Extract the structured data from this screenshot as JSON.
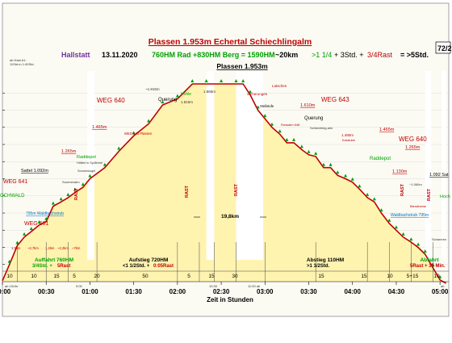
{
  "chart_data": {
    "type": "area",
    "title": "Plassen 1.953m Echertal Schiechlingalm",
    "subtitle": {
      "place": "Hallstatt",
      "date": "13.11.2020",
      "part1": "760HM Rad +830HM Berg = 1590HM",
      "part2": "~20km",
      "part3": ">1 1/4",
      "part4": "+ 3Std. +",
      "part5": "3/4Rast",
      "part6": "= >5Std."
    },
    "badge": "72/2",
    "top_left_note": [
      "ab Hast A1:",
      "11Std.m 1:40Std."
    ],
    "xlabel": "Zeit in Stunden",
    "x_ticks": [
      "00:00",
      "00:30",
      "01:00",
      "01:30",
      "02:00",
      "02:30",
      "03:00",
      "03:30",
      "04:00",
      "04:30",
      "05:00"
    ],
    "x_small_ticks": [
      "ab 10Uhr",
      "9:00",
      "10:30",
      "11:00 ab",
      "ab"
    ],
    "segment_values": [
      "10",
      "10",
      "15",
      "5",
      "20",
      "50",
      "5",
      "15",
      "30",
      "15",
      "15",
      "10",
      "5+15",
      "10"
    ],
    "y_range": [
      800,
      2000
    ],
    "peak_label": "Plassen 1.953m",
    "series": [
      {
        "x": [
          0,
          0.08,
          0.17,
          0.25,
          0.33,
          0.42,
          0.5,
          0.58,
          0.67,
          0.75,
          0.83,
          0.92,
          1.0,
          1.17,
          1.33,
          1.5,
          1.67,
          1.83,
          2.0,
          2.17,
          2.33,
          2.5,
          2.67,
          2.75,
          2.83,
          2.92,
          3.0,
          3.08,
          3.17,
          3.25,
          3.33,
          3.42,
          3.5,
          3.58,
          3.67,
          3.75,
          3.83,
          3.92,
          4.0,
          4.08,
          4.17,
          4.25,
          4.33,
          4.42,
          4.5,
          4.58,
          4.67,
          4.75,
          4.83,
          4.92,
          5.0,
          5.07
        ],
        "y": [
          805,
          900,
          1010,
          1060,
          1092,
          1130,
          1150,
          1240,
          1265,
          1290,
          1320,
          1350,
          1400,
          1465,
          1560,
          1650,
          1720,
          1830,
          1866,
          1953,
          1953,
          1953,
          1953,
          1953,
          1890,
          1800,
          1750,
          1700,
          1660,
          1610,
          1610,
          1570,
          1540,
          1530,
          1465,
          1465,
          1420,
          1400,
          1380,
          1340,
          1290,
          1265,
          1200,
          1140,
          1100,
          1060,
          1030,
          1000,
          960,
          880,
          810,
          790
        ]
      }
    ],
    "elevation_labels": [
      "Sattel 1.092m",
      "1.265m",
      "1.465m",
      "~1.815m",
      "1.815m",
      "1.866m",
      "1.610m",
      "1.465m",
      "1.265m",
      "1.130m",
      "1.092 Sat",
      "1.465m",
      "1.130m",
      "1.490m"
    ],
    "place_labels": [
      "Raddepot",
      "Hütten in Sydlenne",
      "Sommeralm",
      "Sonnenkogel",
      "WEG 643 Plassen",
      "Querung",
      "Höhle",
      "Sicherungen",
      "Latschen",
      "Steilstufe",
      "Querung",
      "Rossalm 648",
      "Schiechling-alm",
      "Karstube",
      "Raddepot",
      "~1.060m",
      "Bierstheine",
      "Schannen",
      "Hoch"
    ],
    "left_labels": [
      "WEG 641",
      "OCHWALD",
      "WEG 601"
    ],
    "weg_labels": [
      "WEG 640",
      "WEG 643",
      "WEG 640"
    ],
    "waldbach_labels": [
      "795m Waldbachstrub",
      "Waldbachstrub 795m"
    ],
    "km_labels": [
      "1,9km",
      "~2,7km",
      "1,2km",
      "~2,2km",
      "~7km"
    ],
    "rast_labels": [
      "RAST",
      "RAST",
      "RAST",
      "RAST",
      "RAST"
    ],
    "distance_label": "19,8km",
    "sections": [
      {
        "line1": "Auffahrt 760HM",
        "line2": "3/4Std. +",
        "line2_red": "5Rast"
      },
      {
        "line1": "Aufstieg 720HM",
        "line2": "<1 1/2Std. +",
        "line2_red": "0:05Rast"
      },
      {
        "line1": "Abstieg 110HM",
        "line2": ">1 1/2Std.",
        "line2_red": ""
      },
      {
        "line1": "Abfahrt",
        "line2": "",
        "line2_red": "5Rast + 35 Min."
      }
    ]
  }
}
